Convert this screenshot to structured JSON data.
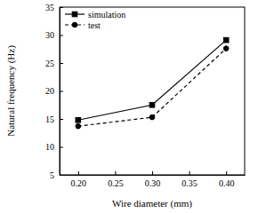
{
  "chart_data": {
    "type": "line",
    "x_label": "Wire diameter (mm)",
    "y_label": "Natural frequency (Hz)",
    "x": [
      0.2,
      0.3,
      0.4
    ],
    "series": [
      {
        "name": "simulation",
        "color": "#000000",
        "marker": "square",
        "line_style": "solid",
        "values": [
          14.8,
          17.5,
          29.1
        ]
      },
      {
        "name": "test",
        "color": "#000000",
        "marker": "circle",
        "line_style": "dashed",
        "values": [
          13.7,
          15.3,
          27.6
        ]
      }
    ],
    "xlim": [
      0.175,
      0.425
    ],
    "xticks": [
      {
        "value": 0.2,
        "label": "0.20"
      },
      {
        "value": 0.25,
        "label": "0.25"
      },
      {
        "value": 0.3,
        "label": "0.30"
      },
      {
        "value": 0.35,
        "label": "0.35"
      },
      {
        "value": 0.4,
        "label": "0.40"
      }
    ],
    "ylim": [
      5,
      35
    ],
    "yticks": [
      5,
      10,
      15,
      20,
      25,
      30,
      35
    ],
    "legend": "upper left",
    "grid": false
  }
}
